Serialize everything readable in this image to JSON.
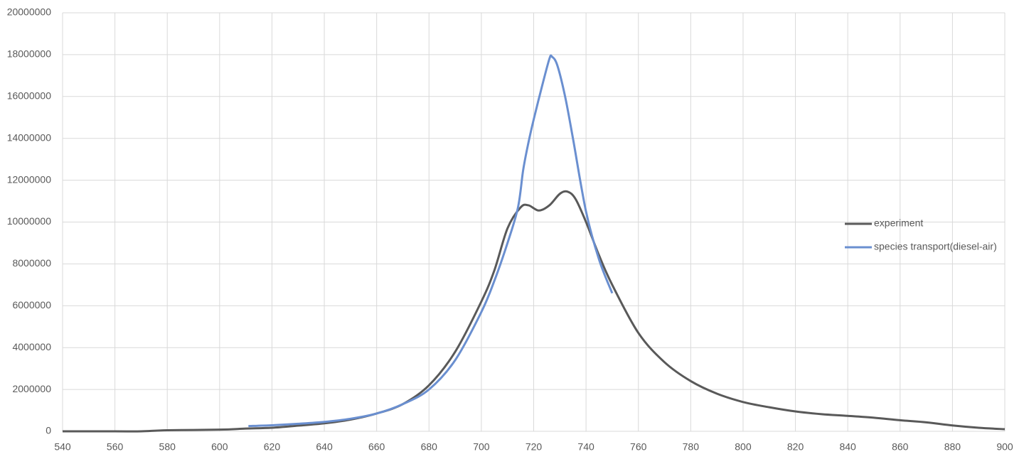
{
  "chart_data": {
    "type": "line",
    "series": [
      {
        "name": "experiment",
        "color": "#595959",
        "x": [
          540,
          560,
          570,
          580,
          600,
          610,
          620,
          630,
          640,
          650,
          660,
          670,
          680,
          690,
          700,
          705,
          710,
          715,
          718,
          722,
          726,
          730,
          733,
          736,
          740,
          745,
          750,
          760,
          770,
          780,
          790,
          800,
          810,
          820,
          830,
          840,
          850,
          860,
          870,
          880,
          890,
          900
        ],
        "values": [
          0,
          0,
          0,
          50000,
          80000,
          130000,
          170000,
          270000,
          380000,
          560000,
          850000,
          1300000,
          2200000,
          3800000,
          6200000,
          7700000,
          9700000,
          10700000,
          10800000,
          10550000,
          10800000,
          11350000,
          11450000,
          11100000,
          10000000,
          8400000,
          7000000,
          4700000,
          3300000,
          2400000,
          1800000,
          1400000,
          1150000,
          950000,
          820000,
          740000,
          650000,
          530000,
          430000,
          280000,
          170000,
          100000
        ]
      },
      {
        "name": "species transport(diesel-air)",
        "color": "#6a8fd0",
        "x": [
          611,
          620,
          630,
          640,
          650,
          660,
          670,
          680,
          690,
          700,
          705,
          710,
          714,
          716,
          718,
          720,
          723,
          726,
          727,
          729,
          732,
          735,
          740,
          745,
          750
        ],
        "values": [
          250000,
          290000,
          360000,
          450000,
          600000,
          850000,
          1300000,
          2000000,
          3400000,
          5700000,
          7200000,
          9000000,
          10700000,
          12500000,
          13800000,
          14900000,
          16400000,
          17800000,
          17900000,
          17500000,
          16000000,
          14000000,
          10500000,
          8200000,
          6600000
        ]
      }
    ],
    "xlim": [
      540,
      900
    ],
    "xticks": [
      540,
      560,
      580,
      600,
      620,
      640,
      660,
      680,
      700,
      720,
      740,
      760,
      780,
      800,
      820,
      840,
      860,
      880,
      900
    ],
    "ylim": [
      0,
      20000000
    ],
    "yticks": [
      0,
      2000000,
      4000000,
      6000000,
      8000000,
      10000000,
      12000000,
      14000000,
      16000000,
      18000000,
      20000000
    ],
    "grid": true,
    "legend": "right"
  }
}
